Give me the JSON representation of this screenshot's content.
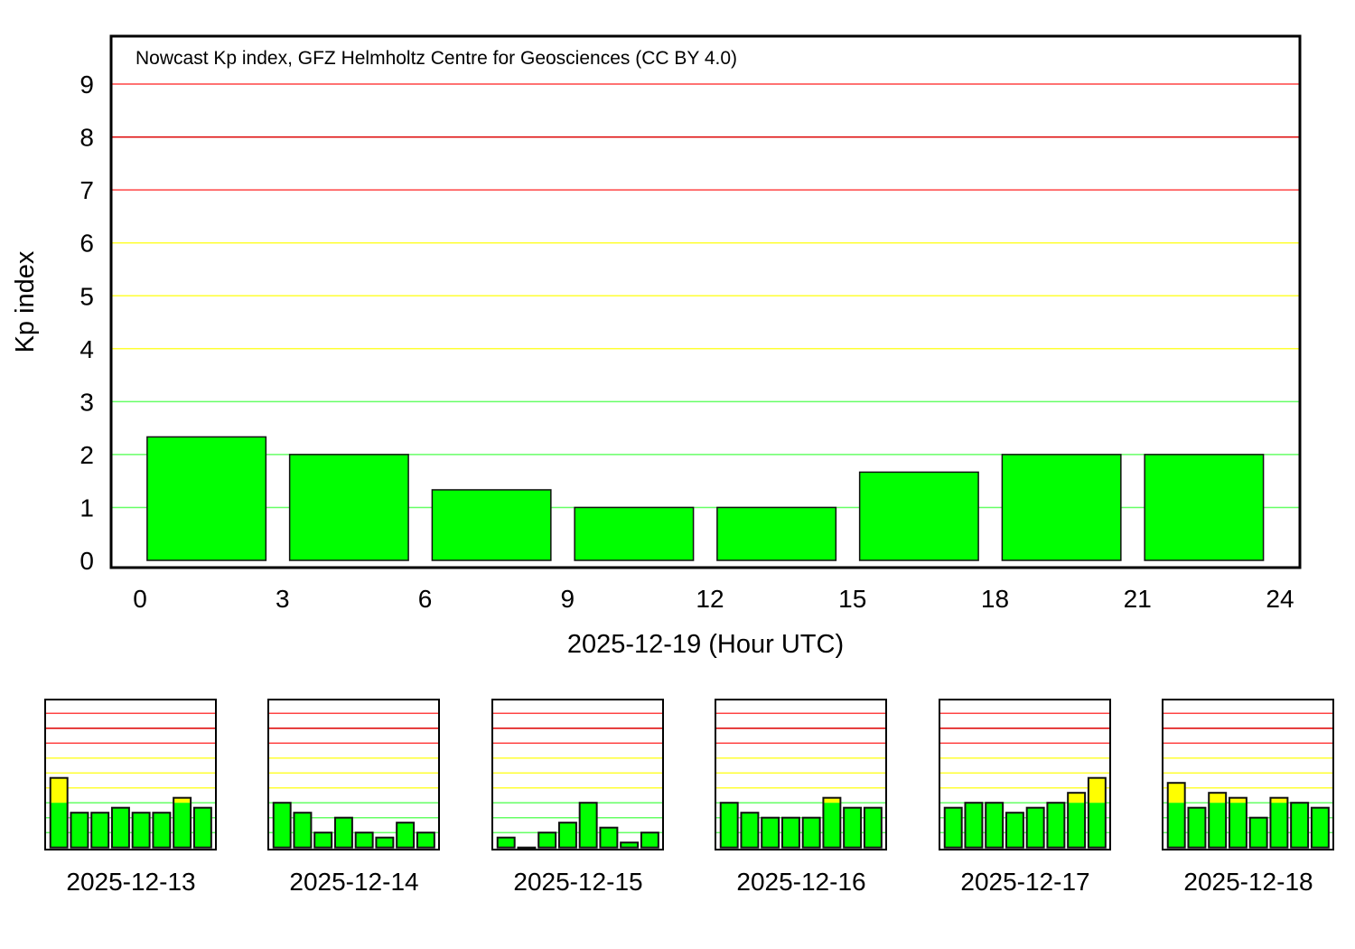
{
  "chart_data": [
    {
      "type": "bar",
      "title": "Nowcast Kp index, GFZ Helmholtz Centre for Geosciences (CC BY 4.0)",
      "xlabel": "2025-12-19 (Hour UTC)",
      "ylabel": "Kp index",
      "x_ticks": [
        "0",
        "3",
        "6",
        "9",
        "12",
        "15",
        "18",
        "21",
        "24"
      ],
      "y_ticks": [
        "0",
        "1",
        "2",
        "3",
        "4",
        "5",
        "6",
        "7",
        "8",
        "9"
      ],
      "xlim": [
        0,
        24
      ],
      "ylim": [
        0,
        9
      ],
      "grid": true,
      "categories": [
        "00-03",
        "03-06",
        "06-09",
        "09-12",
        "12-15",
        "15-18",
        "18-21",
        "21-24"
      ],
      "values": [
        2.333,
        2.0,
        1.333,
        1.0,
        1.0,
        1.667,
        2.0,
        2.0
      ]
    },
    {
      "type": "bar",
      "xlabel": "2025-12-13",
      "categories": [
        "00-03",
        "03-06",
        "06-09",
        "09-12",
        "12-15",
        "15-18",
        "18-21",
        "21-24"
      ],
      "values": [
        4.667,
        2.333,
        2.333,
        2.667,
        2.333,
        2.333,
        3.333,
        2.667
      ],
      "ylim": [
        0,
        9
      ]
    },
    {
      "type": "bar",
      "xlabel": "2025-12-14",
      "categories": [
        "00-03",
        "03-06",
        "06-09",
        "09-12",
        "12-15",
        "15-18",
        "18-21",
        "21-24"
      ],
      "values": [
        3.0,
        2.333,
        1.0,
        2.0,
        1.0,
        0.667,
        1.667,
        1.0
      ],
      "ylim": [
        0,
        9
      ]
    },
    {
      "type": "bar",
      "xlabel": "2025-12-15",
      "categories": [
        "00-03",
        "03-06",
        "06-09",
        "09-12",
        "12-15",
        "15-18",
        "18-21",
        "21-24"
      ],
      "values": [
        0.667,
        0.0,
        1.0,
        1.667,
        3.0,
        1.333,
        0.333,
        1.0
      ],
      "ylim": [
        0,
        9
      ]
    },
    {
      "type": "bar",
      "xlabel": "2025-12-16",
      "categories": [
        "00-03",
        "03-06",
        "06-09",
        "09-12",
        "12-15",
        "15-18",
        "18-21",
        "21-24"
      ],
      "values": [
        3.0,
        2.333,
        2.0,
        2.0,
        2.0,
        3.333,
        2.667,
        2.667
      ],
      "ylim": [
        0,
        9
      ]
    },
    {
      "type": "bar",
      "xlabel": "2025-12-17",
      "categories": [
        "00-03",
        "03-06",
        "06-09",
        "09-12",
        "12-15",
        "15-18",
        "18-21",
        "21-24"
      ],
      "values": [
        2.667,
        3.0,
        3.0,
        2.333,
        2.667,
        3.0,
        3.667,
        4.667
      ],
      "ylim": [
        0,
        9
      ]
    },
    {
      "type": "bar",
      "xlabel": "2025-12-18",
      "categories": [
        "00-03",
        "03-06",
        "06-09",
        "09-12",
        "12-15",
        "15-18",
        "18-21",
        "21-24"
      ],
      "values": [
        4.333,
        2.667,
        3.667,
        3.333,
        2.0,
        3.333,
        3.0,
        2.667
      ],
      "ylim": [
        0,
        9
      ]
    }
  ],
  "colors": {
    "bar_quiet": "#00ff00",
    "bar_active": "#ffff00",
    "grid_green": "#66ff66",
    "grid_yellow": "#ffff33",
    "grid_red": "#ff4444",
    "grid_red_dark": "#dd0000"
  }
}
